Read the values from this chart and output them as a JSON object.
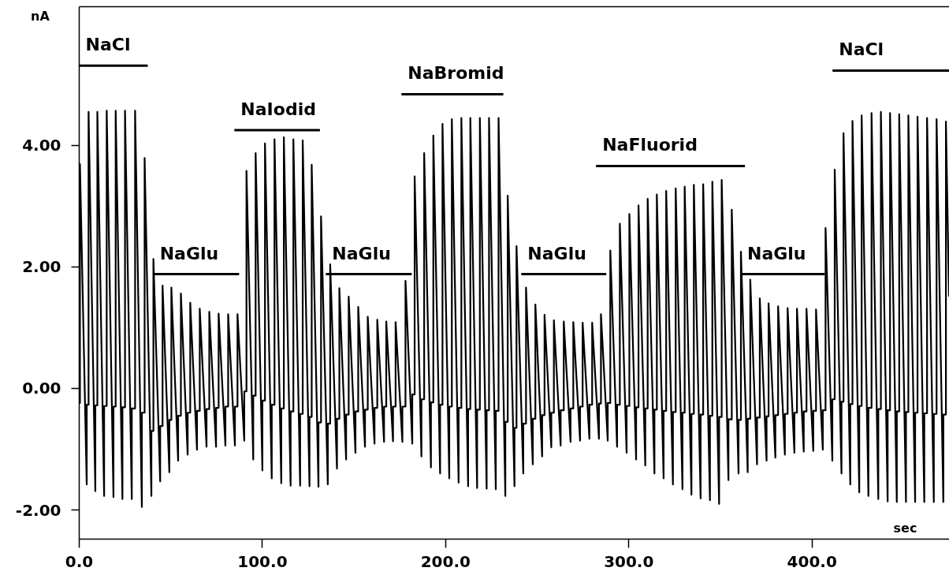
{
  "chart_data": {
    "type": "line",
    "xlabel": "sec",
    "ylabel": "nA",
    "xlim": [
      0,
      475
    ],
    "ylim": [
      -2.48,
      6.28
    ],
    "xticks": [
      {
        "value": 0,
        "label": "0.0"
      },
      {
        "value": 100,
        "label": "100.0"
      },
      {
        "value": 200,
        "label": "200.0"
      },
      {
        "value": 300,
        "label": "300.0"
      },
      {
        "value": 400,
        "label": "400.0"
      }
    ],
    "yticks": [
      {
        "value": -2,
        "label": "-2.00"
      },
      {
        "value": 0,
        "label": "0.00"
      },
      {
        "value": 2,
        "label": "2.00"
      },
      {
        "value": 4,
        "label": "4.00"
      }
    ],
    "grid": false,
    "series": [
      {
        "color": "#000000",
        "x": [
          0.4,
          0.4,
          4.1,
          4.1,
          5.1,
          5.1,
          8.8,
          8.8,
          9.9,
          9.9,
          13.6,
          13.6,
          15.0,
          15.0,
          18.7,
          18.7,
          19.9,
          19.9,
          23.6,
          23.6,
          25.0,
          25.0,
          28.7,
          28.7,
          30.5,
          30.5,
          34.2,
          34.2,
          35.7,
          35.7,
          39.4,
          39.4,
          40.5,
          40.5,
          44.2,
          44.2,
          45.5,
          45.5,
          49.2,
          49.2,
          50.3,
          50.3,
          54.0,
          54.0,
          55.5,
          55.5,
          59.2,
          59.2,
          60.6,
          60.6,
          64.3,
          64.3,
          65.8,
          65.8,
          69.5,
          69.5,
          71.0,
          71.0,
          74.7,
          74.7,
          76.1,
          76.1,
          79.8,
          79.8,
          81.3,
          81.3,
          85.0,
          85.0,
          86.4,
          86.4,
          90.1,
          90.1,
          91.3,
          91.3,
          95.0,
          95.0,
          96.3,
          96.3,
          100.0,
          100.0,
          101.4,
          101.4,
          105.1,
          105.1,
          106.6,
          106.6,
          110.3,
          110.3,
          111.7,
          111.7,
          115.4,
          115.4,
          116.9,
          116.9,
          120.6,
          120.6,
          122.0,
          122.0,
          125.7,
          125.7,
          126.9,
          126.9,
          130.6,
          130.6,
          132.0,
          132.0,
          135.7,
          135.7,
          137.0,
          137.0,
          140.7,
          140.7,
          142.0,
          142.0,
          145.7,
          145.7,
          147.1,
          147.1,
          150.8,
          150.8,
          152.3,
          152.3,
          156.0,
          156.0,
          157.5,
          157.5,
          161.2,
          161.2,
          162.7,
          162.7,
          166.4,
          166.4,
          167.6,
          167.6,
          171.3,
          171.3,
          172.7,
          172.7,
          176.4,
          176.4,
          178.1,
          178.1,
          181.8,
          181.8,
          183.1,
          183.1,
          186.8,
          186.8,
          188.3,
          188.3,
          192.0,
          192.0,
          193.3,
          193.3,
          197.0,
          197.0,
          198.3,
          198.3,
          202.0,
          202.0,
          203.4,
          203.4,
          207.1,
          207.1,
          208.6,
          208.6,
          212.3,
          212.3,
          213.5,
          213.5,
          217.2,
          217.2,
          218.7,
          218.7,
          222.4,
          222.4,
          223.7,
          223.7,
          227.4,
          227.4,
          228.9,
          228.9,
          232.6,
          232.6,
          233.9,
          233.9,
          237.6,
          237.6,
          238.7,
          238.7,
          242.4,
          242.4,
          243.9,
          243.9,
          247.6,
          247.6,
          249.0,
          249.0,
          252.7,
          252.7,
          254.0,
          254.0,
          257.7,
          257.7,
          259.1,
          259.1,
          262.8,
          262.8,
          264.5,
          264.5,
          268.2,
          268.2,
          269.7,
          269.7,
          273.4,
          273.4,
          274.8,
          274.8,
          278.5,
          278.5,
          280.0,
          280.0,
          283.7,
          283.7,
          284.8,
          284.8,
          288.5,
          288.5,
          289.9,
          289.9,
          293.6,
          293.6,
          295.1,
          295.1,
          298.8,
          298.8,
          300.3,
          300.3,
          304.0,
          304.0,
          305.3,
          305.3,
          309.0,
          309.0,
          310.3,
          310.3,
          314.0,
          314.0,
          315.3,
          315.3,
          319.0,
          319.0,
          320.4,
          320.4,
          324.1,
          324.1,
          325.6,
          325.6,
          329.3,
          329.3,
          330.5,
          330.5,
          334.2,
          334.2,
          335.5,
          335.5,
          339.2,
          339.2,
          340.6,
          340.6,
          344.3,
          344.3,
          345.6,
          345.6,
          349.3,
          349.3,
          350.7,
          350.7,
          354.4,
          354.4,
          356.2,
          356.2,
          359.9,
          359.9,
          361.2,
          361.2,
          364.9,
          364.9,
          366.3,
          366.3,
          370.0,
          370.0,
          371.5,
          371.5,
          375.2,
          375.2,
          376.3,
          376.3,
          380.0,
          380.0,
          381.5,
          381.5,
          385.2,
          385.2,
          386.7,
          386.7,
          390.4,
          390.4,
          391.8,
          391.8,
          395.5,
          395.5,
          397.0,
          397.0,
          400.7,
          400.7,
          402.2,
          402.2,
          405.9,
          405.9,
          407.4,
          407.4,
          411.1,
          411.1,
          412.4,
          412.4,
          416.1,
          416.1,
          417.2,
          417.2,
          420.9,
          420.9,
          422.1,
          422.1,
          425.8,
          425.8,
          427.1,
          427.1,
          430.8,
          430.8,
          432.5,
          432.5,
          436.2,
          436.2,
          437.6,
          437.6,
          441.3,
          441.3,
          442.6,
          442.6,
          446.3,
          446.3,
          447.6,
          447.6,
          451.3,
          451.3,
          452.6,
          452.6,
          456.3,
          456.3,
          457.6,
          457.6,
          461.3,
          461.3,
          462.8,
          462.8,
          466.5,
          466.5,
          468.0,
          468.0,
          471.7,
          471.7,
          473.1,
          473.1,
          474.8
        ],
        "values": [
          -0.25,
          3.69,
          -1.58,
          -0.27,
          -0.27,
          4.55,
          -1.69,
          -0.28,
          -0.28,
          4.55,
          -1.77,
          -0.29,
          -0.29,
          4.57,
          -1.79,
          -0.3,
          -0.3,
          4.57,
          -1.82,
          -0.31,
          -0.31,
          4.57,
          -1.82,
          -0.33,
          -0.33,
          4.57,
          -1.95,
          -0.4,
          -0.4,
          3.79,
          -1.77,
          -0.7,
          -0.7,
          2.13,
          -1.53,
          -0.62,
          -0.62,
          1.69,
          -1.38,
          -0.52,
          -0.52,
          1.66,
          -1.19,
          -0.45,
          -0.45,
          1.56,
          -1.09,
          -0.4,
          -0.4,
          1.41,
          -1.01,
          -0.37,
          -0.37,
          1.31,
          -0.96,
          -0.34,
          -0.34,
          1.26,
          -0.96,
          -0.32,
          -0.32,
          1.23,
          -0.94,
          -0.3,
          -0.3,
          1.22,
          -0.94,
          -0.3,
          -0.3,
          1.22,
          -0.86,
          -0.05,
          -0.05,
          3.58,
          -1.17,
          -0.12,
          -0.12,
          3.87,
          -1.35,
          -0.2,
          -0.2,
          4.03,
          -1.48,
          -0.27,
          -0.27,
          4.1,
          -1.56,
          -0.33,
          -0.33,
          4.13,
          -1.6,
          -0.38,
          -0.38,
          4.1,
          -1.6,
          -0.42,
          -0.42,
          4.08,
          -1.61,
          -0.47,
          -0.47,
          3.68,
          -1.62,
          -0.56,
          -0.56,
          2.83,
          -1.58,
          -0.58,
          -0.58,
          2.04,
          -1.32,
          -0.5,
          -0.5,
          1.65,
          -1.17,
          -0.43,
          -0.43,
          1.51,
          -1.06,
          -0.38,
          -0.38,
          1.34,
          -0.96,
          -0.35,
          -0.35,
          1.18,
          -0.91,
          -0.32,
          -0.32,
          1.13,
          -0.88,
          -0.3,
          -0.3,
          1.1,
          -0.87,
          -0.3,
          -0.3,
          1.09,
          -0.88,
          -0.3,
          -0.3,
          1.77,
          -0.91,
          -0.1,
          -0.1,
          3.49,
          -1.12,
          -0.18,
          -0.18,
          3.87,
          -1.3,
          -0.23,
          -0.23,
          4.16,
          -1.4,
          -0.27,
          -0.27,
          4.35,
          -1.48,
          -0.3,
          -0.3,
          4.43,
          -1.55,
          -0.32,
          -0.32,
          4.45,
          -1.61,
          -0.34,
          -0.34,
          4.45,
          -1.64,
          -0.35,
          -0.35,
          4.45,
          -1.65,
          -0.36,
          -0.36,
          4.45,
          -1.66,
          -0.37,
          -0.37,
          4.45,
          -1.77,
          -0.55,
          -0.55,
          3.17,
          -1.61,
          -0.65,
          -0.65,
          2.34,
          -1.4,
          -0.58,
          -0.58,
          1.66,
          -1.25,
          -0.5,
          -0.5,
          1.38,
          -1.12,
          -0.44,
          -0.44,
          1.21,
          -0.97,
          -0.4,
          -0.4,
          1.12,
          -0.94,
          -0.36,
          -0.36,
          1.1,
          -0.88,
          -0.33,
          -0.33,
          1.09,
          -0.86,
          -0.3,
          -0.3,
          1.08,
          -0.83,
          -0.27,
          -0.27,
          1.08,
          -0.83,
          -0.25,
          -0.25,
          1.22,
          -0.86,
          -0.24,
          -0.24,
          2.27,
          -0.96,
          -0.27,
          -0.27,
          2.71,
          -1.06,
          -0.29,
          -0.29,
          2.87,
          -1.17,
          -0.31,
          -0.31,
          3.01,
          -1.27,
          -0.33,
          -0.33,
          3.12,
          -1.4,
          -0.35,
          -0.35,
          3.19,
          -1.48,
          -0.37,
          -0.37,
          3.25,
          -1.58,
          -0.39,
          -0.39,
          3.29,
          -1.66,
          -0.4,
          -0.4,
          3.32,
          -1.75,
          -0.42,
          -0.42,
          3.35,
          -1.81,
          -0.43,
          -0.43,
          3.36,
          -1.84,
          -0.45,
          -0.45,
          3.4,
          -1.9,
          -0.47,
          -0.47,
          3.43,
          -1.51,
          -0.51,
          -0.51,
          2.94,
          -1.4,
          -0.52,
          -0.52,
          2.25,
          -1.38,
          -0.5,
          -0.5,
          1.79,
          -1.25,
          -0.48,
          -0.48,
          1.48,
          -1.19,
          -0.46,
          -0.46,
          1.4,
          -1.14,
          -0.44,
          -0.44,
          1.35,
          -1.09,
          -0.42,
          -0.42,
          1.32,
          -1.06,
          -0.4,
          -0.4,
          1.31,
          -1.04,
          -0.38,
          -0.38,
          1.31,
          -1.03,
          -0.37,
          -0.37,
          1.3,
          -1.01,
          -0.36,
          -0.36,
          2.64,
          -1.19,
          -0.18,
          -0.18,
          3.6,
          -1.4,
          -0.22,
          -0.22,
          4.2,
          -1.58,
          -0.26,
          -0.26,
          4.4,
          -1.71,
          -0.29,
          -0.29,
          4.49,
          -1.77,
          -0.32,
          -0.32,
          4.53,
          -1.82,
          -0.34,
          -0.34,
          4.55,
          -1.86,
          -0.36,
          -0.36,
          4.53,
          -1.87,
          -0.38,
          -0.38,
          4.51,
          -1.87,
          -0.39,
          -0.39,
          4.49,
          -1.87,
          -0.4,
          -0.4,
          4.47,
          -1.87,
          -0.41,
          -0.41,
          4.45,
          -1.87,
          -0.42,
          -0.42,
          4.43,
          -1.87,
          -0.43,
          -0.43,
          4.39,
          1.51
        ]
      },
      {
        "name": "NaCl",
        "color": "#000000",
        "x": [
          0,
          37.4
        ],
        "values": [
          5.31,
          5.31
        ]
      },
      {
        "name": "NaGlu",
        "color": "#000000",
        "x": [
          40.5,
          87.3
        ],
        "values": [
          1.88,
          1.88
        ]
      },
      {
        "name": "NaIodid",
        "color": "#000000",
        "x": [
          84.7,
          131.4
        ],
        "values": [
          4.25,
          4.25
        ]
      },
      {
        "name": "NaGlu",
        "color": "#000000",
        "x": [
          134.6,
          181.5
        ],
        "values": [
          1.88,
          1.88
        ]
      },
      {
        "name": "NaBromid",
        "color": "#000000",
        "x": [
          175.9,
          231.5
        ],
        "values": [
          4.84,
          4.84
        ]
      },
      {
        "name": "NaGlu",
        "color": "#000000",
        "x": [
          241.3,
          287.7
        ],
        "values": [
          1.88,
          1.88
        ]
      },
      {
        "name": "NaFluorid",
        "color": "#000000",
        "x": [
          282.1,
          363.4
        ],
        "values": [
          3.66,
          3.66
        ]
      },
      {
        "name": "NaGlu",
        "color": "#000000",
        "x": [
          361.2,
          406.9
        ],
        "values": [
          1.88,
          1.88
        ]
      },
      {
        "name": "NaCl",
        "color": "#000000",
        "x": [
          411.2,
          475
        ],
        "values": [
          5.23,
          5.23
        ]
      }
    ]
  }
}
